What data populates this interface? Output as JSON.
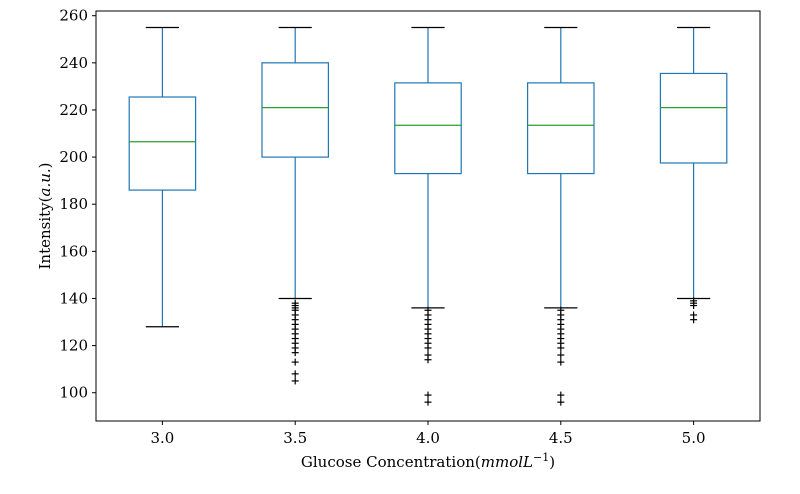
{
  "chart_data": {
    "type": "box",
    "xlabel": "Glucose Concentration",
    "xlabel_unit_italic": "mmolL",
    "xlabel_unit_exp": "−1",
    "ylabel": "Intensity",
    "ylabel_unit_italic": "a.u.",
    "ylim": [
      88,
      262
    ],
    "yticks": [
      100,
      120,
      140,
      160,
      180,
      200,
      220,
      240,
      260
    ],
    "categories": [
      "3.0",
      "3.5",
      "4.0",
      "4.5",
      "5.0"
    ],
    "grid": false,
    "colors": {
      "box": "#1f77b4",
      "median": "#2ca02c",
      "whisker_cap": "#000000",
      "outlier": "#000000"
    },
    "boxes": [
      {
        "category": "3.0",
        "whislo": 128,
        "q1": 186,
        "median": 206.5,
        "q3": 225.5,
        "whishi": 255,
        "fliers": []
      },
      {
        "category": "3.5",
        "whislo": 140,
        "q1": 200,
        "median": 221,
        "q3": 240,
        "whishi": 255,
        "fliers": [
          138,
          137,
          136,
          135,
          133,
          131,
          129,
          127,
          125,
          123,
          121,
          119,
          117,
          113,
          108,
          105
        ]
      },
      {
        "category": "4.0",
        "whislo": 136,
        "q1": 193,
        "median": 213.5,
        "q3": 231.5,
        "whishi": 255,
        "fliers": [
          135,
          133,
          131,
          129,
          127,
          125,
          123,
          121,
          119,
          116,
          114,
          99,
          96
        ]
      },
      {
        "category": "4.5",
        "whislo": 136,
        "q1": 193,
        "median": 213.5,
        "q3": 231.5,
        "whishi": 255,
        "fliers": [
          135,
          133,
          131,
          129,
          127,
          125,
          123,
          121,
          119,
          116,
          113,
          99,
          96
        ]
      },
      {
        "category": "5.0",
        "whislo": 140,
        "q1": 197.5,
        "median": 221,
        "q3": 235.5,
        "whishi": 255,
        "fliers": [
          139,
          138,
          137,
          133,
          131
        ]
      }
    ]
  }
}
